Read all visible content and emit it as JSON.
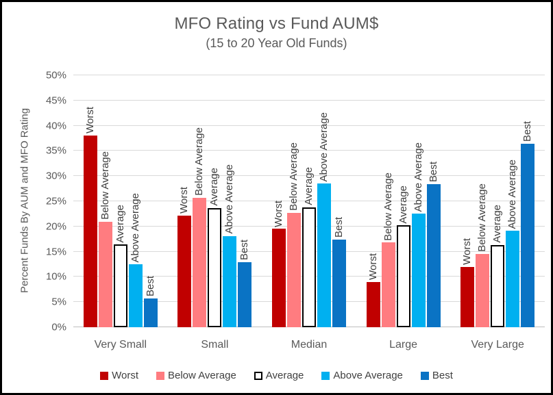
{
  "chart_data": {
    "type": "bar",
    "title": "MFO Rating vs Fund AUM$",
    "subtitle": "(15 to 20 Year Old Funds)",
    "xlabel": "",
    "ylabel": "Percent Funds By AUM and MFO Rating",
    "ylim": [
      0,
      50
    ],
    "ytick_step": 5,
    "ytick_labels": [
      "0%",
      "5%",
      "10%",
      "15%",
      "20%",
      "25%",
      "30%",
      "35%",
      "40%",
      "45%",
      "50%"
    ],
    "grid": true,
    "legend_position": "bottom",
    "bar_labels": "series name above each bar, rotated 90 degrees",
    "categories": [
      "Very Small",
      "Small",
      "Median",
      "Large",
      "Very Large"
    ],
    "series": [
      {
        "name": "Worst",
        "color": "#C00000",
        "border": null,
        "values": [
          38.0,
          22.1,
          19.5,
          9.0,
          12.0
        ]
      },
      {
        "name": "Below Average",
        "color": "#FF7C80",
        "border": null,
        "values": [
          20.9,
          25.7,
          22.7,
          16.8,
          14.6
        ]
      },
      {
        "name": "Average",
        "color": "#FFFFFF",
        "border": "#000000",
        "values": [
          16.4,
          23.7,
          23.8,
          20.2,
          16.3
        ]
      },
      {
        "name": "Above Average",
        "color": "#00B0F0",
        "border": null,
        "values": [
          12.5,
          18.1,
          28.5,
          22.5,
          19.1
        ]
      },
      {
        "name": "Best",
        "color": "#0A73C4",
        "border": null,
        "values": [
          5.7,
          12.9,
          17.4,
          28.4,
          36.4
        ]
      }
    ],
    "colors": {
      "title_text": "#595959",
      "axis_text": "#595959",
      "bar_label_text": "#3F3F3F",
      "gridline": "#D9D9D9",
      "axis_line": "#BFBFBF",
      "frame_border": "#000000",
      "background": "#FFFFFF"
    }
  }
}
